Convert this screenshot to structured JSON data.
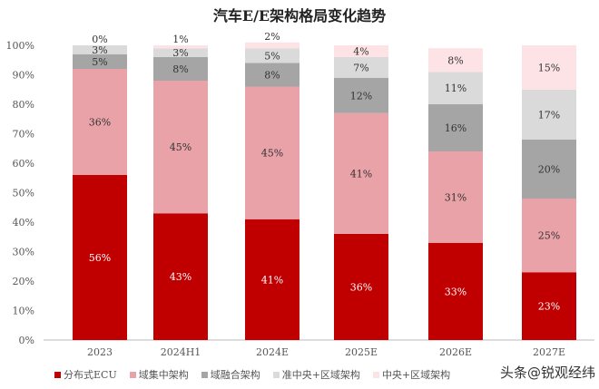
{
  "chart_data": {
    "type": "bar",
    "stacked": true,
    "title": "汽车E/E架构格局变化趋势",
    "categories": [
      "2023",
      "2024H1",
      "2024E",
      "2025E",
      "2026E",
      "2027E"
    ],
    "ylim": [
      0,
      100
    ],
    "yticks": [
      "0%",
      "10%",
      "20%",
      "30%",
      "40%",
      "50%",
      "60%",
      "70%",
      "80%",
      "90%",
      "100%"
    ],
    "grid": false,
    "legend_position": "bottom",
    "series": [
      {
        "name": "分布式ECU",
        "color": "#c00000",
        "label_color": "#ffffff",
        "values": [
          56,
          43,
          41,
          36,
          33,
          23
        ]
      },
      {
        "name": "域集中架构",
        "color": "#e8a2a8",
        "label_color": "#333333",
        "values": [
          36,
          45,
          45,
          41,
          31,
          25
        ]
      },
      {
        "name": "域融合架构",
        "color": "#a5a5a5",
        "label_color": "#333333",
        "values": [
          5,
          8,
          8,
          12,
          16,
          20
        ]
      },
      {
        "name": "准中央+区域架构",
        "color": "#dadada",
        "label_color": "#333333",
        "values": [
          3,
          3,
          5,
          7,
          11,
          17
        ]
      },
      {
        "name": "中央+区域架构",
        "color": "#fde3e5",
        "label_color": "#333333",
        "values": [
          0,
          1,
          2,
          4,
          8,
          15
        ]
      }
    ]
  },
  "watermark": "头条@锐观经纬"
}
